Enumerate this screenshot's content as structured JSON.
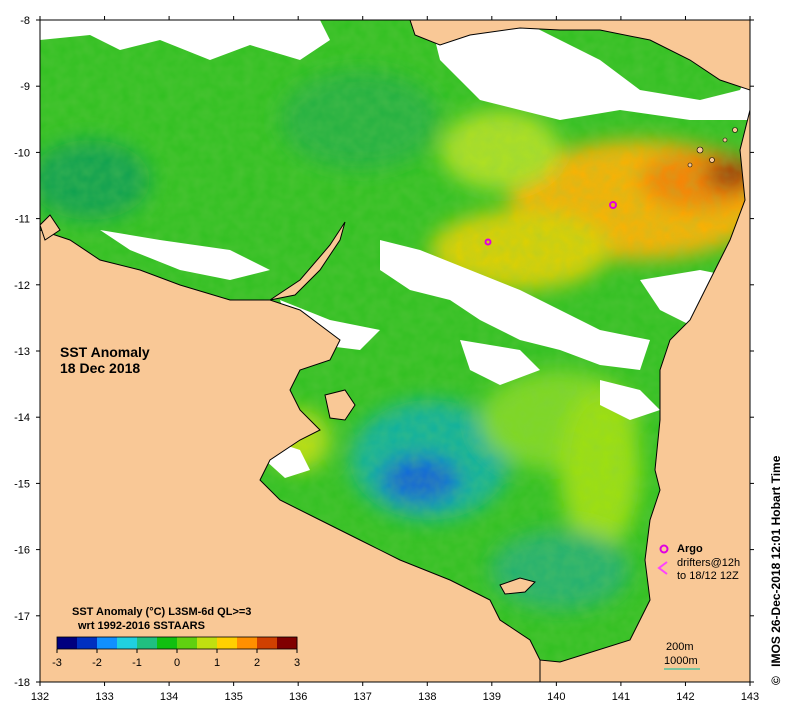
{
  "map": {
    "title_line1": "SST Anomaly",
    "title_line2": "18 Dec 2018",
    "x_ticks": [
      "132",
      "133",
      "134",
      "135",
      "136",
      "137",
      "138",
      "139",
      "140",
      "141",
      "142",
      "143"
    ],
    "y_ticks": [
      "-8",
      "-9",
      "-10",
      "-11",
      "-12",
      "-13",
      "-14",
      "-15",
      "-16",
      "-17",
      "-18"
    ],
    "land_color": "#f9c896",
    "no_data_color": "#ffffff"
  },
  "colorbar": {
    "title_line1": "SST Anomaly (°C) L3SM-6d QL>=3",
    "title_line2": "wrt 1992-2016 SSTAARS",
    "tick_labels": [
      "-3",
      "-2",
      "-1",
      "0",
      "1",
      "2",
      "3"
    ],
    "colors": [
      "#00007f",
      "#0030c0",
      "#1090ff",
      "#20d0e0",
      "#20c080",
      "#10c010",
      "#60d010",
      "#c0e010",
      "#ffd000",
      "#ff9000",
      "#d04000",
      "#800000"
    ]
  },
  "legend": {
    "argo_label": "Argo",
    "drifters_label": "drifters@12h",
    "drifters_range": "to 18/12 12Z",
    "contour_200": "200m",
    "contour_1000": "1000m",
    "argo_color": "#e000e0",
    "drifter_color": "#ff40ff"
  },
  "credit": "IMOS 26-Dec-2018 12:01 Hobart Time",
  "copyright_symbol": "©"
}
